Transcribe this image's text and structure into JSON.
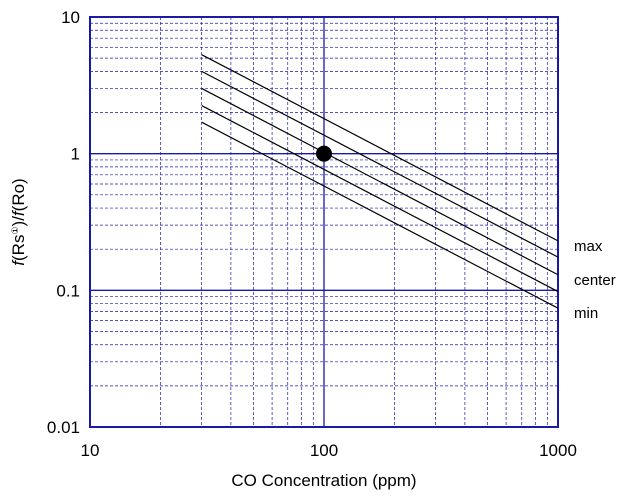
{
  "chart_data": {
    "type": "line",
    "title": "",
    "xlabel": "CO Concentration (ppm)",
    "ylabel_parts": {
      "num_fn": "f",
      "num_arg": "(Rs",
      "num_sup": "①",
      "num_close": ")/",
      "den_fn": "f",
      "den_arg": "(Ro)"
    },
    "xscale": "log",
    "yscale": "log",
    "xlim": [
      10,
      1000
    ],
    "ylim": [
      0.01,
      10
    ],
    "x_tick_labels": [
      "10",
      "100",
      "1000"
    ],
    "y_tick_labels": [
      "0.01",
      "0.1",
      "1",
      "10"
    ],
    "grid": true,
    "frame_color": "#1a1aa6",
    "series": [
      {
        "label": "max",
        "x": [
          30,
          1000
        ],
        "y": [
          5.3,
          0.23
        ]
      },
      {
        "label": "",
        "x": [
          30,
          1000
        ],
        "y": [
          4.0,
          0.175
        ]
      },
      {
        "label": "center",
        "x": [
          30,
          1000
        ],
        "y": [
          3.0,
          0.13
        ]
      },
      {
        "label": "",
        "x": [
          30,
          1000
        ],
        "y": [
          2.25,
          0.098
        ]
      },
      {
        "label": "min",
        "x": [
          30,
          1000
        ],
        "y": [
          1.7,
          0.074
        ]
      }
    ],
    "reference_point": {
      "x": 100,
      "y": 1
    }
  }
}
